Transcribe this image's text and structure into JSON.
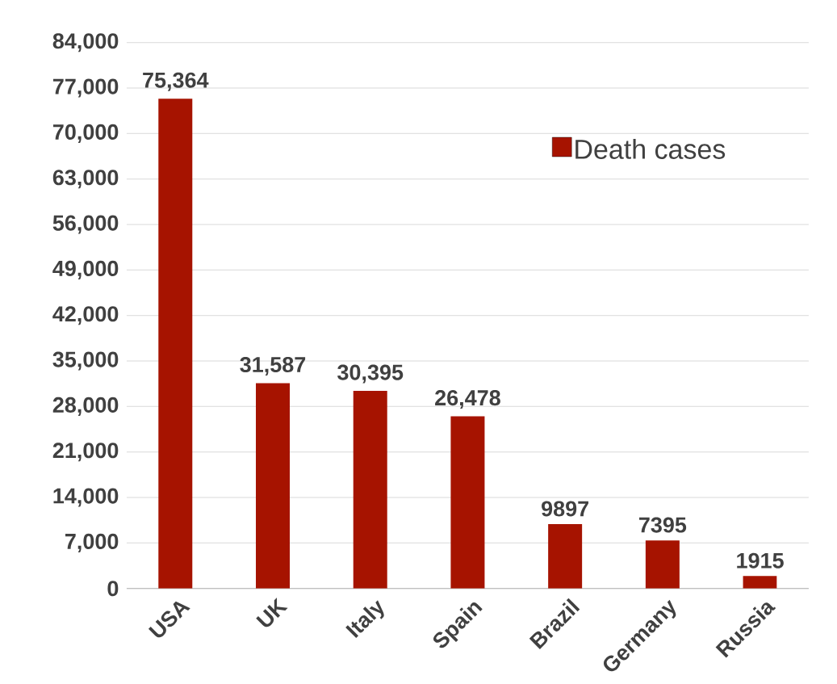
{
  "chart_data": {
    "type": "bar",
    "categories": [
      "USA",
      "UK",
      "Italy",
      "Spain",
      "Brazil",
      "Germany",
      "Russia"
    ],
    "series": [
      {
        "name": "Death cases",
        "color": "#a61300",
        "values": [
          75364,
          31587,
          30395,
          26478,
          9897,
          7395,
          1915
        ],
        "value_labels": [
          "75,364",
          "31,587",
          "30,395",
          "26,478",
          "9897",
          "7395",
          "1915"
        ]
      }
    ],
    "ylim": [
      0,
      84000
    ],
    "yticks": [
      0,
      {
        "value": 7000,
        "label": "7,000"
      },
      {
        "value": 14000,
        "label": "14,000"
      },
      {
        "value": 21000,
        "label": "21,000"
      },
      {
        "value": 28000,
        "label": "28,000"
      },
      {
        "value": 35000,
        "label": "35,000"
      },
      {
        "value": 42000,
        "label": "42,000"
      },
      {
        "value": 49000,
        "label": "49,000"
      },
      {
        "value": 56000,
        "label": "56,000"
      },
      {
        "value": 63000,
        "label": "63,000"
      },
      {
        "value": 70000,
        "label": "70,000"
      },
      {
        "value": 77000,
        "label": "77,000"
      },
      {
        "value": 84000,
        "label": "84,000"
      }
    ],
    "grid": "y",
    "legend": "top right"
  }
}
